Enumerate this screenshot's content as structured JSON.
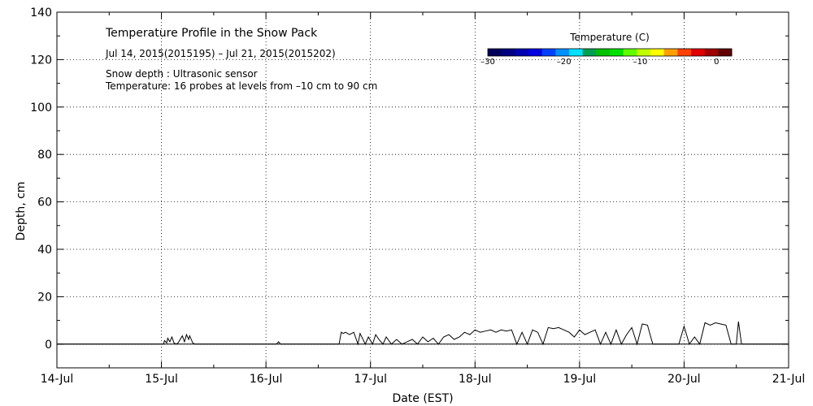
{
  "chart_data": {
    "type": "line",
    "title": "Temperature Profile in the Snow Pack",
    "subtitle": "Jul 14, 2015(2015195) – Jul 21, 2015(2015202)",
    "notes": [
      "Snow depth : Ultrasonic sensor",
      "Temperature: 16 probes at levels from –10 cm to 90 cm"
    ],
    "xlabel": "Date (EST)",
    "ylabel": "Depth, cm",
    "x_ticks": [
      "14-Jul",
      "15-Jul",
      "16-Jul",
      "17-Jul",
      "18-Jul",
      "19-Jul",
      "20-Jul",
      "21-Jul"
    ],
    "xlim": [
      0,
      7
    ],
    "ylim": [
      -10,
      140
    ],
    "y_ticks": [
      0,
      20,
      40,
      60,
      80,
      100,
      120,
      140
    ],
    "grid": "dotted",
    "colorbar": {
      "title": "Temperature (C)",
      "tick_labels": [
        "–30",
        "–20",
        "–10",
        "0"
      ],
      "tick_values": [
        -30,
        -20,
        -10,
        0
      ],
      "range": [
        -30,
        2
      ],
      "colors": [
        "#00005a",
        "#000080",
        "#0000b0",
        "#0000e0",
        "#0040ff",
        "#0090ff",
        "#00e0ff",
        "#00a050",
        "#00c000",
        "#00e000",
        "#60ff00",
        "#c0ff00",
        "#ffff00",
        "#ffa000",
        "#ff4000",
        "#e00000",
        "#a00000",
        "#600000"
      ]
    },
    "series": [
      {
        "x": [
          0,
          1.02,
          1.03,
          1.05,
          1.06,
          1.08,
          1.1,
          1.12,
          1.14,
          1.16,
          1.2,
          1.22,
          1.24,
          1.26,
          1.27,
          1.3,
          1.32,
          1.35,
          2.1,
          2.12,
          2.14,
          2.7,
          2.72,
          2.74,
          2.76,
          2.8,
          2.84,
          2.88,
          2.9,
          2.95,
          2.98,
          3.02,
          3.05,
          3.08,
          3.12,
          3.15,
          3.2,
          3.25,
          3.3,
          3.35,
          3.4,
          3.45,
          3.5,
          3.55,
          3.6,
          3.65,
          3.7,
          3.75,
          3.8,
          3.85,
          3.9,
          3.95,
          4.0,
          4.05,
          4.1,
          4.15,
          4.2,
          4.25,
          4.3,
          4.35,
          4.4,
          4.45,
          4.5,
          4.55,
          4.6,
          4.65,
          4.7,
          4.75,
          4.8,
          4.85,
          4.9,
          4.95,
          5.0,
          5.05,
          5.1,
          5.15,
          5.2,
          5.25,
          5.3,
          5.35,
          5.4,
          5.45,
          5.5,
          5.55,
          5.6,
          5.65,
          5.7,
          5.75,
          5.8,
          5.85,
          5.9,
          5.95,
          6.0,
          6.05,
          6.1,
          6.15,
          6.2,
          6.25,
          6.3,
          6.35,
          6.4,
          6.45,
          6.5,
          6.52,
          6.55,
          6.6,
          7.0
        ],
        "y": [
          0,
          0,
          1.5,
          0.5,
          2.5,
          1,
          3,
          0.5,
          0,
          0.5,
          3.5,
          1,
          4,
          2,
          3.5,
          0.5,
          0,
          0,
          0,
          1,
          0,
          0,
          5,
          4.5,
          5,
          4,
          5,
          0,
          4.5,
          0,
          3,
          0,
          4,
          2,
          0,
          3,
          0,
          2,
          0,
          1,
          2,
          0,
          3,
          1,
          2.5,
          0,
          3,
          4,
          2,
          3,
          5,
          4,
          6,
          5,
          5.5,
          6,
          5,
          6,
          5.5,
          6,
          0,
          5,
          0,
          6,
          5,
          0,
          7,
          6.5,
          7,
          6,
          5,
          3,
          6,
          4,
          5,
          6,
          0,
          5,
          0,
          6,
          0,
          4,
          7,
          0,
          8.5,
          8,
          0,
          0,
          0,
          0,
          0,
          0,
          7.5,
          0,
          3,
          0,
          9,
          8,
          9,
          8.5,
          8,
          0,
          0,
          9.5,
          0,
          0,
          0
        ]
      }
    ]
  }
}
